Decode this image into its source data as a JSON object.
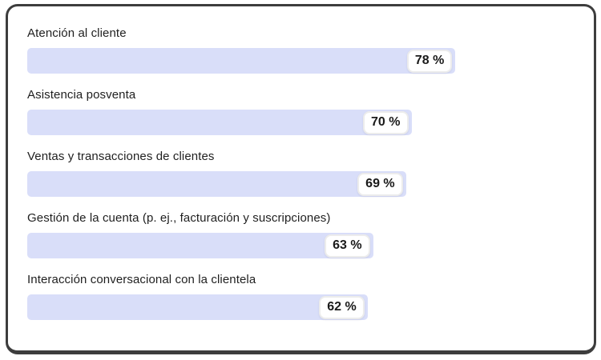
{
  "chart_data": {
    "type": "bar",
    "orientation": "horizontal",
    "categories": [
      "Atención al cliente",
      "Asistencia posventa",
      "Ventas y transacciones de clientes",
      "Gestión de la cuenta (p. ej., facturación y suscripciones)",
      "Interacción conversacional con la clientela"
    ],
    "values": [
      78,
      70,
      69,
      63,
      62
    ],
    "value_labels": [
      "78 %",
      "70 %",
      "69 %",
      "63 %",
      "62 %"
    ],
    "xlim": [
      0,
      100
    ],
    "title": "",
    "xlabel": "",
    "ylabel": "",
    "grid": false,
    "legend": false,
    "value_label_position": "inside-end-badge"
  },
  "colors": {
    "bar_fill": "#d9def9",
    "badge_background": "#ffffff",
    "badge_border": "#ececec",
    "label_text": "#1f1f1f",
    "badge_text": "#1a1a1a",
    "card_border": "#3d3d3d",
    "card_background": "#ffffff"
  }
}
